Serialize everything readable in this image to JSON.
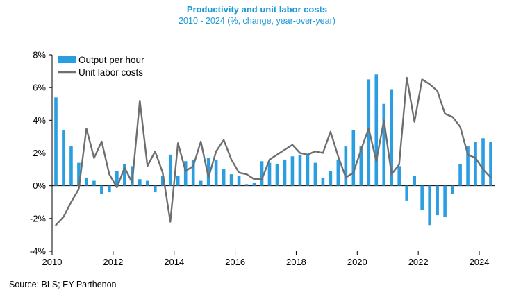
{
  "chart_data": {
    "type": "bar+line",
    "title": "Productivity and unit labor costs",
    "subtitle": "2010 - 2024 (%, change, year-over-year)",
    "xlabel": "",
    "ylabel": "",
    "xlim": [
      2010,
      2024.5
    ],
    "ylim": [
      -4,
      8
    ],
    "x_ticks": [
      2010,
      2012,
      2014,
      2016,
      2018,
      2020,
      2022,
      2024
    ],
    "x_tick_labels": [
      "2010",
      "2012",
      "2014",
      "2016",
      "2018",
      "2020",
      "2022",
      "2024"
    ],
    "y_ticks": [
      -4,
      -2,
      0,
      2,
      4,
      6,
      8
    ],
    "y_tick_labels": [
      "-4%",
      "-2%",
      "0%",
      "2%",
      "4%",
      "6%",
      "8%"
    ],
    "grid": false,
    "legend_position": "top-left",
    "series": [
      {
        "name": "Output per hour",
        "kind": "bar",
        "color": "#2a9ee0",
        "x": [
          2010.125,
          2010.375,
          2010.625,
          2010.875,
          2011.125,
          2011.375,
          2011.625,
          2011.875,
          2012.125,
          2012.375,
          2012.625,
          2012.875,
          2013.125,
          2013.375,
          2013.625,
          2013.875,
          2014.125,
          2014.375,
          2014.625,
          2014.875,
          2015.125,
          2015.375,
          2015.625,
          2015.875,
          2016.125,
          2016.375,
          2016.625,
          2016.875,
          2017.125,
          2017.375,
          2017.625,
          2017.875,
          2018.125,
          2018.375,
          2018.625,
          2018.875,
          2019.125,
          2019.375,
          2019.625,
          2019.875,
          2020.125,
          2020.375,
          2020.625,
          2020.875,
          2021.125,
          2021.375,
          2021.625,
          2021.875,
          2022.125,
          2022.375,
          2022.625,
          2022.875,
          2023.125,
          2023.375,
          2023.625,
          2023.875,
          2024.125,
          2024.375
        ],
        "values": [
          5.4,
          3.4,
          2.4,
          1.4,
          0.5,
          0.3,
          -0.5,
          -0.4,
          0.9,
          1.3,
          1.2,
          0.4,
          0.3,
          -0.4,
          0.6,
          1.9,
          0.6,
          1.5,
          1.6,
          0.3,
          1.7,
          1.6,
          1.0,
          0.7,
          0.6,
          0.1,
          0.2,
          1.5,
          1.4,
          1.3,
          1.6,
          1.8,
          1.9,
          1.9,
          1.4,
          0.5,
          0.9,
          1.6,
          2.4,
          3.4,
          2.4,
          6.5,
          6.8,
          5.0,
          5.9,
          1.2,
          -0.9,
          0.6,
          -1.5,
          -2.4,
          -1.8,
          -1.9,
          -0.5,
          1.3,
          2.4,
          2.7,
          2.9,
          2.7
        ]
      },
      {
        "name": "Unit labor costs",
        "kind": "line",
        "color": "#6e6e6e",
        "x": [
          2010.125,
          2010.375,
          2010.625,
          2010.875,
          2011.125,
          2011.375,
          2011.625,
          2011.875,
          2012.125,
          2012.375,
          2012.625,
          2012.875,
          2013.125,
          2013.375,
          2013.625,
          2013.875,
          2014.125,
          2014.375,
          2014.625,
          2014.875,
          2015.125,
          2015.375,
          2015.625,
          2015.875,
          2016.125,
          2016.375,
          2016.625,
          2016.875,
          2017.125,
          2017.375,
          2017.625,
          2017.875,
          2018.125,
          2018.375,
          2018.625,
          2018.875,
          2019.125,
          2019.375,
          2019.625,
          2019.875,
          2020.125,
          2020.375,
          2020.625,
          2020.875,
          2021.125,
          2021.375,
          2021.625,
          2021.875,
          2022.125,
          2022.375,
          2022.625,
          2022.875,
          2023.125,
          2023.375,
          2023.625,
          2023.875,
          2024.125,
          2024.375
        ],
        "values": [
          -2.4,
          -1.9,
          -1.0,
          -0.2,
          3.5,
          1.7,
          2.7,
          0.7,
          -0.1,
          1.1,
          0.2,
          5.2,
          1.2,
          2.1,
          0.8,
          -2.2,
          2.6,
          0.9,
          1.2,
          2.7,
          0.5,
          2.1,
          2.8,
          1.6,
          0.8,
          0.7,
          0.4,
          0.4,
          1.6,
          1.9,
          2.2,
          2.5,
          2.0,
          1.9,
          2.1,
          2.0,
          3.3,
          1.8,
          0.5,
          0.8,
          2.2,
          3.5,
          1.5,
          4.0,
          0.7,
          1.3,
          6.6,
          3.9,
          6.5,
          6.2,
          5.8,
          4.4,
          4.2,
          3.6,
          1.9,
          1.7,
          1.0,
          0.5
        ]
      }
    ]
  },
  "footer": {
    "source": "Source: BLS; EY-Parthenon"
  }
}
